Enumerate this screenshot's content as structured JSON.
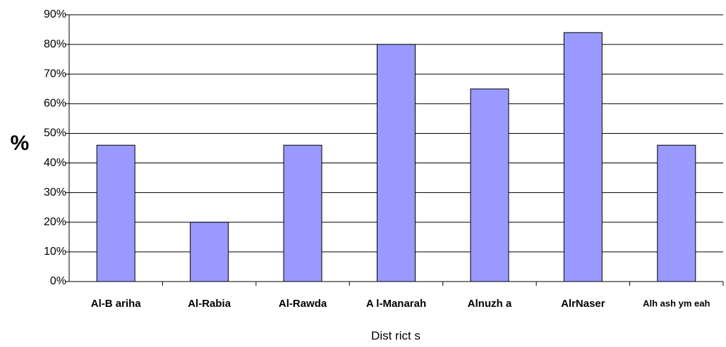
{
  "chart_data": {
    "type": "bar",
    "x_label": "Dist rict s",
    "y_label": "%",
    "categories": [
      "Al-B ariha",
      "Al-Rabia",
      "Al-Rawda",
      "A l-Manarah",
      "Alnuzh a",
      "AlrNaser",
      "Alh ash ym eah"
    ],
    "values": [
      46,
      20,
      46,
      80,
      65,
      84,
      46
    ],
    "color": "#9999ff",
    "ylim": [
      0,
      90
    ],
    "yticks": [
      {
        "value": 0,
        "label": "0%"
      },
      {
        "value": 10,
        "label": "10%"
      },
      {
        "value": 20,
        "label": "20%"
      },
      {
        "value": 30,
        "label": "30%"
      },
      {
        "value": 40,
        "label": "40%"
      },
      {
        "value": 50,
        "label": "50%"
      },
      {
        "value": 60,
        "label": "60%"
      },
      {
        "value": 70,
        "label": "70%"
      },
      {
        "value": 80,
        "label": "80%"
      },
      {
        "value": 90,
        "label": "90%"
      }
    ],
    "grid": true
  }
}
